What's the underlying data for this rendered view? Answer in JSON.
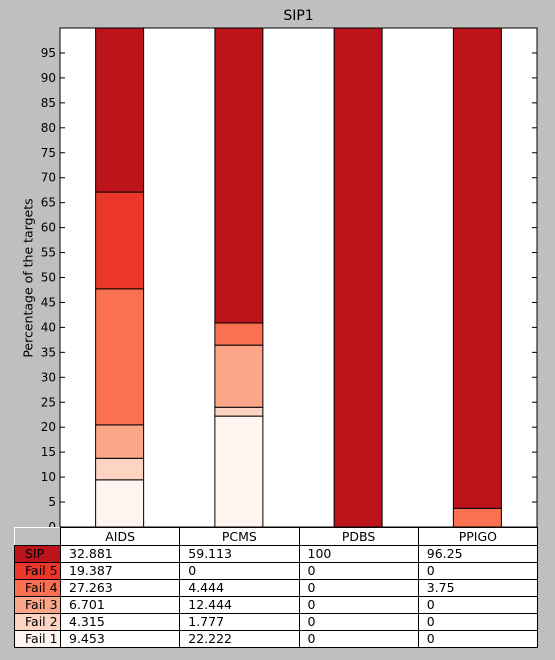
{
  "chart_data": {
    "type": "bar",
    "stacked": true,
    "title": "SIP1",
    "ylabel": "Percentage of the targets",
    "xlabel": "",
    "ylim": [
      0,
      100
    ],
    "yticks": [
      0,
      5,
      10,
      15,
      20,
      25,
      30,
      35,
      40,
      45,
      50,
      55,
      60,
      65,
      70,
      75,
      80,
      85,
      90,
      95
    ],
    "categories": [
      "AIDS",
      "PCMS",
      "PDBS",
      "PPIGO"
    ],
    "series": [
      {
        "name": "Fail 1",
        "color": "#fff5f0",
        "values": [
          9.453,
          22.222,
          0,
          0
        ],
        "labels": [
          "9.453",
          "22.222",
          "0",
          "0"
        ]
      },
      {
        "name": "Fail 2",
        "color": "#fdd4c2",
        "values": [
          4.315,
          1.777,
          0,
          0
        ],
        "labels": [
          "4.315",
          "1.777",
          "0",
          "0"
        ]
      },
      {
        "name": "Fail 3",
        "color": "#fca689",
        "values": [
          6.701,
          12.444,
          0,
          0
        ],
        "labels": [
          "6.701",
          "12.444",
          "0",
          "0"
        ]
      },
      {
        "name": "Fail 4",
        "color": "#fb7050",
        "values": [
          27.263,
          4.444,
          0,
          3.75
        ],
        "labels": [
          "27.263",
          "4.444",
          "0",
          "3.75"
        ]
      },
      {
        "name": "Fail 5",
        "color": "#eb372a",
        "values": [
          19.387,
          0,
          0,
          0
        ],
        "labels": [
          "19.387",
          "0",
          "0",
          "0"
        ]
      },
      {
        "name": "SIP",
        "color": "#bc141a",
        "values": [
          32.881,
          59.113,
          100,
          96.25
        ],
        "labels": [
          "32.881",
          "59.113",
          "100",
          "96.25"
        ]
      }
    ],
    "table_row_order": [
      "SIP",
      "Fail 5",
      "Fail 4",
      "Fail 3",
      "Fail 2",
      "Fail 1"
    ]
  }
}
